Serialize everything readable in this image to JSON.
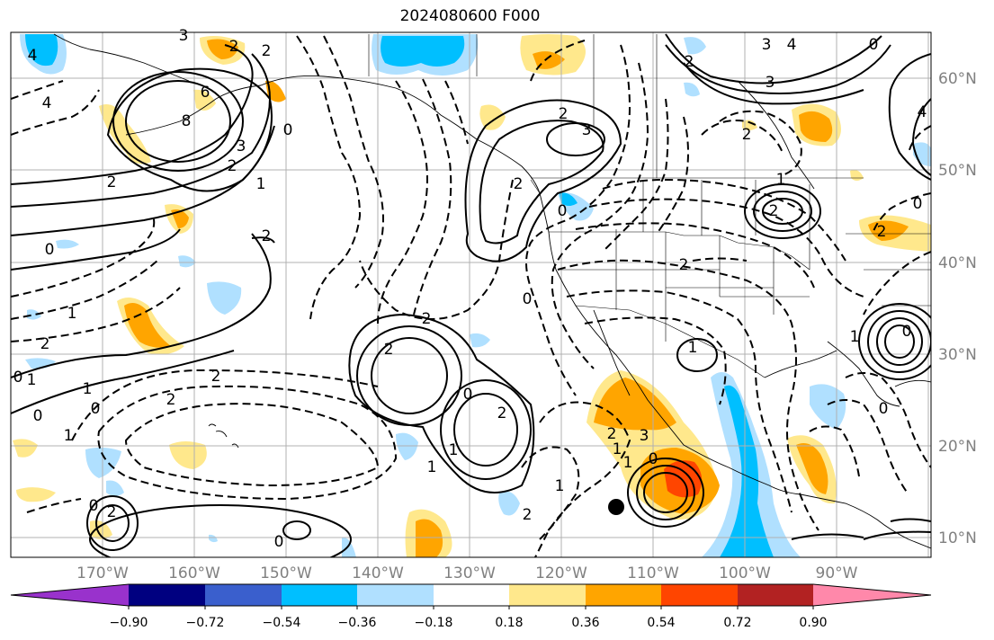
{
  "title": "2024080600 F000",
  "lon_labels": [
    "170°W",
    "160°W",
    "150°W",
    "140°W",
    "130°W",
    "120°W",
    "110°W",
    "100°W",
    "90°W"
  ],
  "lat_labels": [
    "60°N",
    "50°N",
    "40°N",
    "30°N",
    "20°N",
    "10°N"
  ],
  "colorbar": {
    "tick_labels": [
      "−0.90",
      "−0.72",
      "−0.54",
      "−0.36",
      "−0.18",
      "0.18",
      "0.36",
      "0.54",
      "0.72",
      "0.90"
    ],
    "colors": [
      "#9932cc",
      "#000080",
      "#3a5fcd",
      "#00bfff",
      "#b0e0ff",
      "#ffffff",
      "#ffe88c",
      "#ffa500",
      "#ff4500",
      "#b22222",
      "#ff88aa"
    ]
  },
  "contour_labels": [
    "4",
    "2",
    "3",
    "2",
    "4",
    "6",
    "8",
    "3",
    "2",
    "1",
    "2",
    "0",
    "1",
    "0",
    "2",
    "1",
    "0",
    "2",
    "1",
    "0",
    "1",
    "2",
    "0",
    "2",
    "2",
    "0",
    "1",
    "2",
    "2",
    "3",
    "2",
    "0",
    "3",
    "4",
    "3",
    "0",
    "2",
    "1",
    "1",
    "2",
    "0",
    "2",
    "2",
    "0",
    "2",
    "1",
    "0",
    "1",
    "2",
    "3",
    "1",
    "1",
    "2",
    "0",
    "0",
    "2",
    "0",
    "0",
    "1",
    "4",
    "2"
  ]
}
